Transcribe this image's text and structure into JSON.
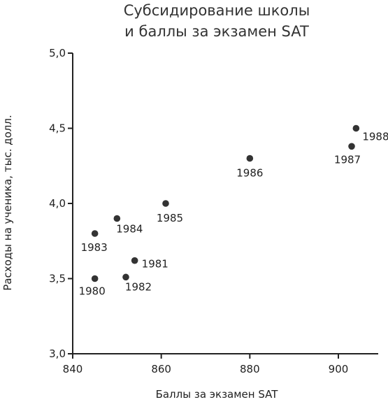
{
  "chart_data": {
    "type": "scatter",
    "title": [
      "Субсидирование школы",
      "и баллы за экзамен SAT"
    ],
    "xlabel": "Баллы за экзамен SAT",
    "ylabel": "Расходы на ученика, тыс. долл.",
    "xlim": [
      840,
      909
    ],
    "ylim": [
      3.0,
      5.0
    ],
    "xticks": [
      {
        "value": 840,
        "label": "840"
      },
      {
        "value": 860,
        "label": "860"
      },
      {
        "value": 880,
        "label": "880"
      },
      {
        "value": 900,
        "label": "900"
      }
    ],
    "yticks": [
      {
        "value": 3.0,
        "label": "3,0"
      },
      {
        "value": 3.5,
        "label": "3,5"
      },
      {
        "value": 4.0,
        "label": "4,0"
      },
      {
        "value": 4.5,
        "label": "4,5"
      },
      {
        "value": 5.0,
        "label": "5,0"
      }
    ],
    "grid": false,
    "point_color": "#333333",
    "points": [
      {
        "label": "1980",
        "x": 845,
        "y": 3.5
      },
      {
        "label": "1981",
        "x": 854,
        "y": 3.62
      },
      {
        "label": "1982",
        "x": 852,
        "y": 3.51
      },
      {
        "label": "1983",
        "x": 845,
        "y": 3.8
      },
      {
        "label": "1984",
        "x": 850,
        "y": 3.9
      },
      {
        "label": "1985",
        "x": 861,
        "y": 4.0
      },
      {
        "label": "1986",
        "x": 880,
        "y": 4.3
      },
      {
        "label": "1987",
        "x": 903,
        "y": 4.38
      },
      {
        "label": "1988",
        "x": 904,
        "y": 4.5
      }
    ]
  }
}
